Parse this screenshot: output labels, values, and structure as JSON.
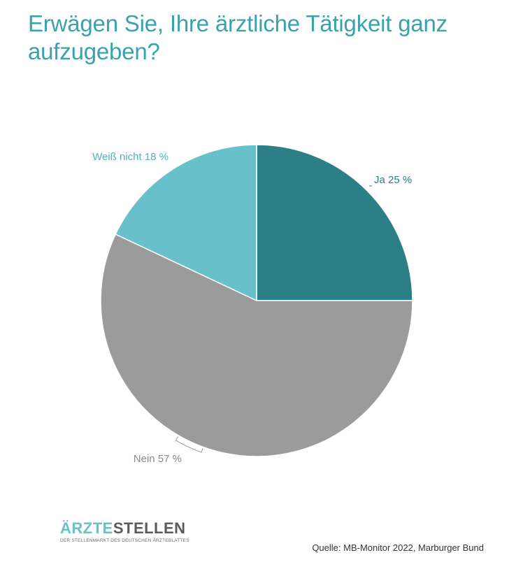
{
  "title": "Erwägen Sie, Ihre ärztliche Tätigkeit ganz aufzugeben?",
  "chart_data": {
    "type": "pie",
    "title": "Erwägen Sie, Ihre ärztliche Tätigkeit ganz aufzugeben?",
    "unit": "%",
    "slices": [
      {
        "label": "Ja 25 %",
        "name": "Ja",
        "value": 25,
        "color": "#2d7f87",
        "label_color": "#2d7f87"
      },
      {
        "label": "Nein 57 %",
        "name": "Nein",
        "value": 57,
        "color": "#9b9b9b",
        "label_color": "#8a8a8a"
      },
      {
        "label": "Weiß nicht 18 %",
        "name": "Weiß nicht",
        "value": 18,
        "color": "#68c1ca",
        "label_color": "#4fb3bd"
      }
    ],
    "start": "12 o'clock",
    "direction": "clockwise",
    "legend": "none"
  },
  "branding": {
    "logo_part1": "ÄRZTE",
    "logo_part2": "STELLEN",
    "logo_tagline": "DER STELLENMARKT DES DEUTSCHEN ÄRZTEBLATTES"
  },
  "source": "Quelle: MB-Monitor 2022, Marburger Bund",
  "colors": {
    "title": "#3aa2ad",
    "separator": "#ffffff"
  }
}
